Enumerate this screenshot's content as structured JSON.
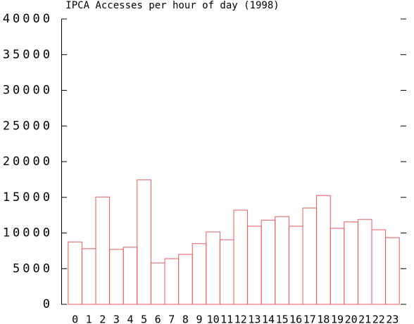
{
  "chart_data": {
    "type": "bar",
    "title": "IPCA Accesses per hour of day (1998)",
    "categories": [
      "0",
      "1",
      "2",
      "3",
      "4",
      "5",
      "6",
      "7",
      "8",
      "9",
      "10",
      "11",
      "12",
      "13",
      "14",
      "15",
      "16",
      "17",
      "18",
      "19",
      "20",
      "21",
      "22",
      "23"
    ],
    "values": [
      8750,
      7800,
      15050,
      7700,
      8000,
      17450,
      5800,
      6400,
      7000,
      8500,
      10150,
      9050,
      13200,
      10950,
      11800,
      12300,
      10950,
      13500,
      15250,
      10650,
      11550,
      11900,
      10450,
      9350
    ],
    "color": "#e8595c",
    "ylim": [
      0,
      40000
    ],
    "yticks": [
      0,
      5000,
      10000,
      15000,
      20000,
      25000,
      30000,
      35000,
      40000
    ]
  }
}
